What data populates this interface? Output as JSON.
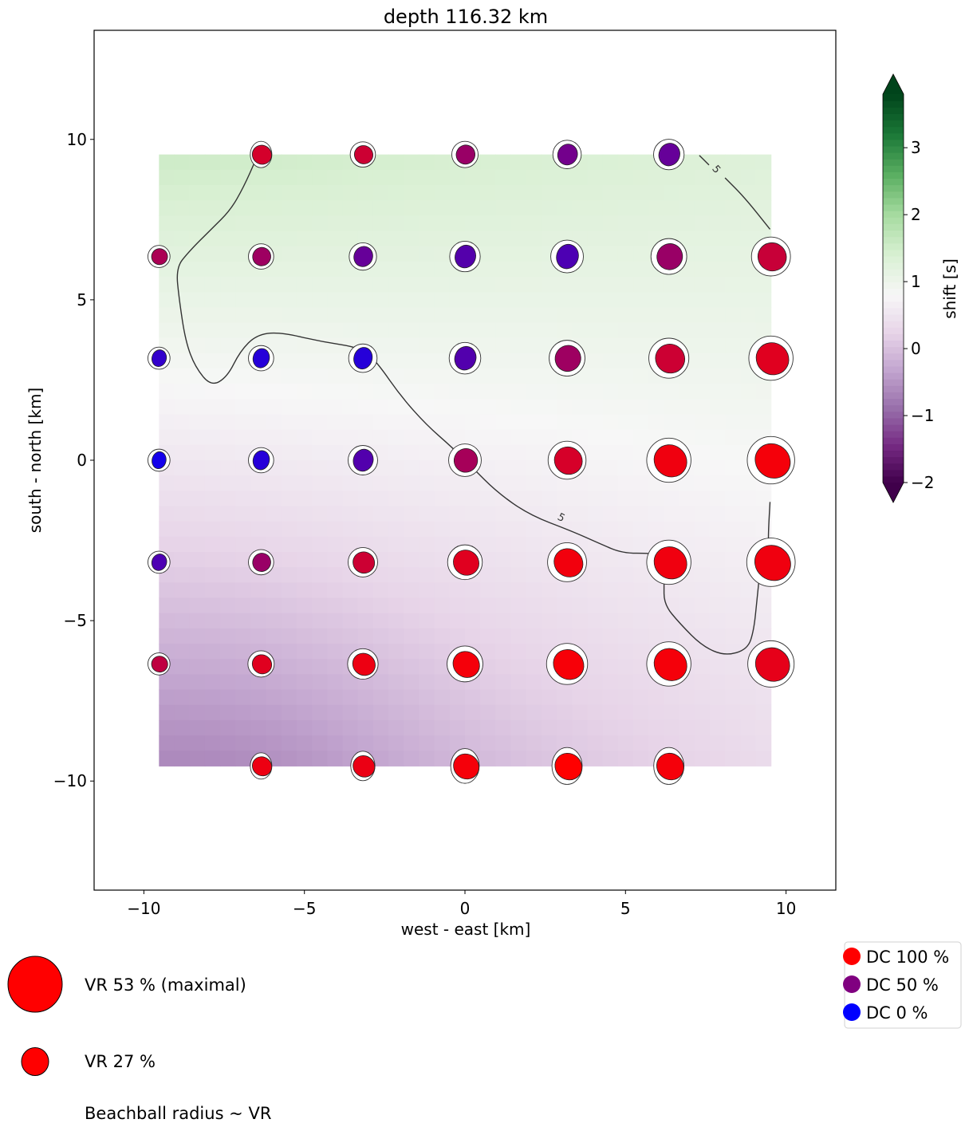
{
  "chart_data": {
    "type": "heatmap",
    "title": "depth 116.32 km",
    "xlabel": "west - east [km]",
    "ylabel": "south - north [km]",
    "xlim": [
      -11.55,
      11.55
    ],
    "ylim": [
      -13.4,
      13.4
    ],
    "xticks": [
      -10,
      -5,
      0,
      5,
      10
    ],
    "yticks": [
      -10,
      -5,
      0,
      5,
      10
    ],
    "xtick_labels": [
      "−10",
      "−5",
      "0",
      "5",
      "10"
    ],
    "ytick_labels": [
      "−10",
      "−5",
      "0",
      "5",
      "10"
    ],
    "grid": false,
    "grid_x_km": [
      -9.53,
      -6.35,
      -3.18,
      0,
      3.18,
      6.35,
      9.53
    ],
    "grid_y_km": [
      9.53,
      6.35,
      3.18,
      0,
      -3.18,
      -6.35,
      -9.53
    ],
    "background": {
      "quantity": "shift [s]",
      "extent_km": [
        -9.53,
        9.53,
        -9.53,
        9.53
      ],
      "corner_values": {
        "top_left": 1.55,
        "top_right": 1.3,
        "bottom_left": -0.45,
        "bottom_right": 0.35
      },
      "min_location_km": [
        -6.5,
        -9.5
      ],
      "min_value": -0.5
    },
    "colorbar": {
      "label": "shift [s]",
      "range": [
        -2,
        3.8
      ],
      "ticks": [
        -2,
        -1,
        0,
        1,
        2,
        3
      ],
      "tick_labels": [
        "−2",
        "−1",
        "0",
        "1",
        "2",
        "3"
      ],
      "extend": "both",
      "colormap": "PRGn"
    },
    "contour": {
      "level": 5,
      "label": "5"
    },
    "beachballs": {
      "note": "rows listed north to south; null = no solution at grid point",
      "vr_percent": [
        [
          null,
          25,
          24,
          25,
          27,
          29,
          null
        ],
        [
          21,
          24,
          26,
          29,
          31,
          34,
          37
        ],
        [
          21,
          24,
          27,
          30,
          34,
          38,
          42
        ],
        [
          21,
          24,
          28,
          31,
          36,
          42,
          45
        ],
        [
          21,
          24,
          28,
          33,
          37,
          42,
          46
        ],
        [
          21,
          25,
          29,
          34,
          39,
          42,
          44
        ],
        [
          null,
          25,
          28,
          33,
          35,
          35,
          null
        ]
      ],
      "dc_percent": [
        [
          null,
          83,
          80,
          60,
          45,
          40,
          null
        ],
        [
          67,
          62,
          40,
          33,
          30,
          60,
          78
        ],
        [
          20,
          15,
          15,
          32,
          62,
          80,
          88
        ],
        [
          8,
          15,
          32,
          65,
          84,
          94,
          96
        ],
        [
          30,
          60,
          80,
          88,
          95,
          94,
          94
        ],
        [
          75,
          88,
          93,
          96,
          97,
          96,
          90
        ],
        [
          null,
          93,
          92,
          96,
          100,
          96,
          null
        ]
      ]
    },
    "legend_vr": [
      {
        "label": "VR 53 % (maximal)",
        "vr": 53
      },
      {
        "label": "VR 27 %",
        "vr": 27
      }
    ],
    "legend_vr_note": "Beachball radius ~ VR",
    "legend_dc": [
      {
        "label": "DC 100 %",
        "color": "#ff0000"
      },
      {
        "label": "DC 50 %",
        "color": "#800080"
      },
      {
        "label": "DC 0 %",
        "color": "#0000ff"
      }
    ]
  }
}
